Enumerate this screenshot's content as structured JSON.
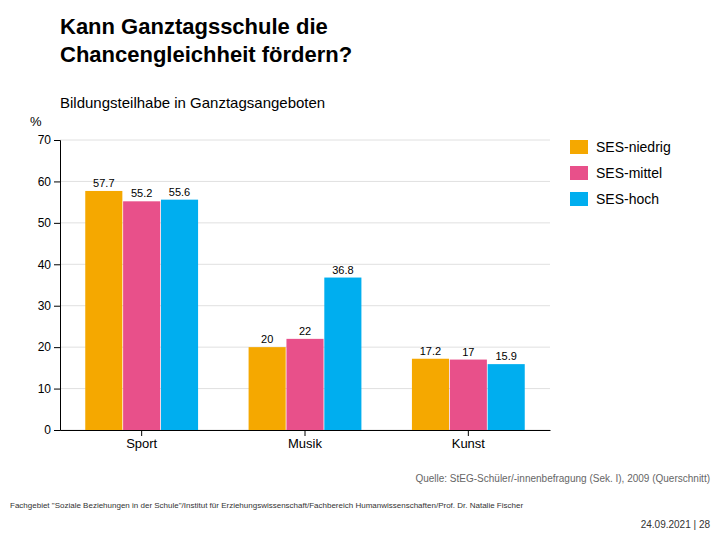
{
  "chart_data": {
    "type": "bar",
    "title": "Kann Ganztagsschule die\nChancengleichheit fördern?",
    "subtitle": "Bildungsteilhabe in Ganztagsangeboten",
    "ylabel": "%",
    "categories": [
      "Sport",
      "Musik",
      "Kunst"
    ],
    "series": [
      {
        "name": "SES-niedrig",
        "color": "#F5A800",
        "values": [
          57.7,
          20,
          17.2
        ]
      },
      {
        "name": "SES-mittel",
        "color": "#E8508A",
        "values": [
          55.2,
          22,
          17.0
        ]
      },
      {
        "name": "SES-hoch",
        "color": "#00AEEF",
        "values": [
          55.6,
          36.8,
          15.9
        ]
      }
    ],
    "ylim": [
      0,
      70
    ],
    "yticks": [
      0,
      10,
      20,
      30,
      40,
      50,
      60,
      70
    ],
    "grid": true,
    "legend": "right",
    "data_labels": true,
    "annotations": [
      "Quelle: StEG-Schüler/-innenbefragung (Sek. I), 2009 (Querschnitt)",
      "Fachgebiet \"Soziale Beziehungen in der Schule\"/Institut für Erziehungswissenschaft/Fachbereich Humanwissenschaften/Prof. Dr. Natalie Fischer",
      "24.09.2021  |  28"
    ]
  }
}
